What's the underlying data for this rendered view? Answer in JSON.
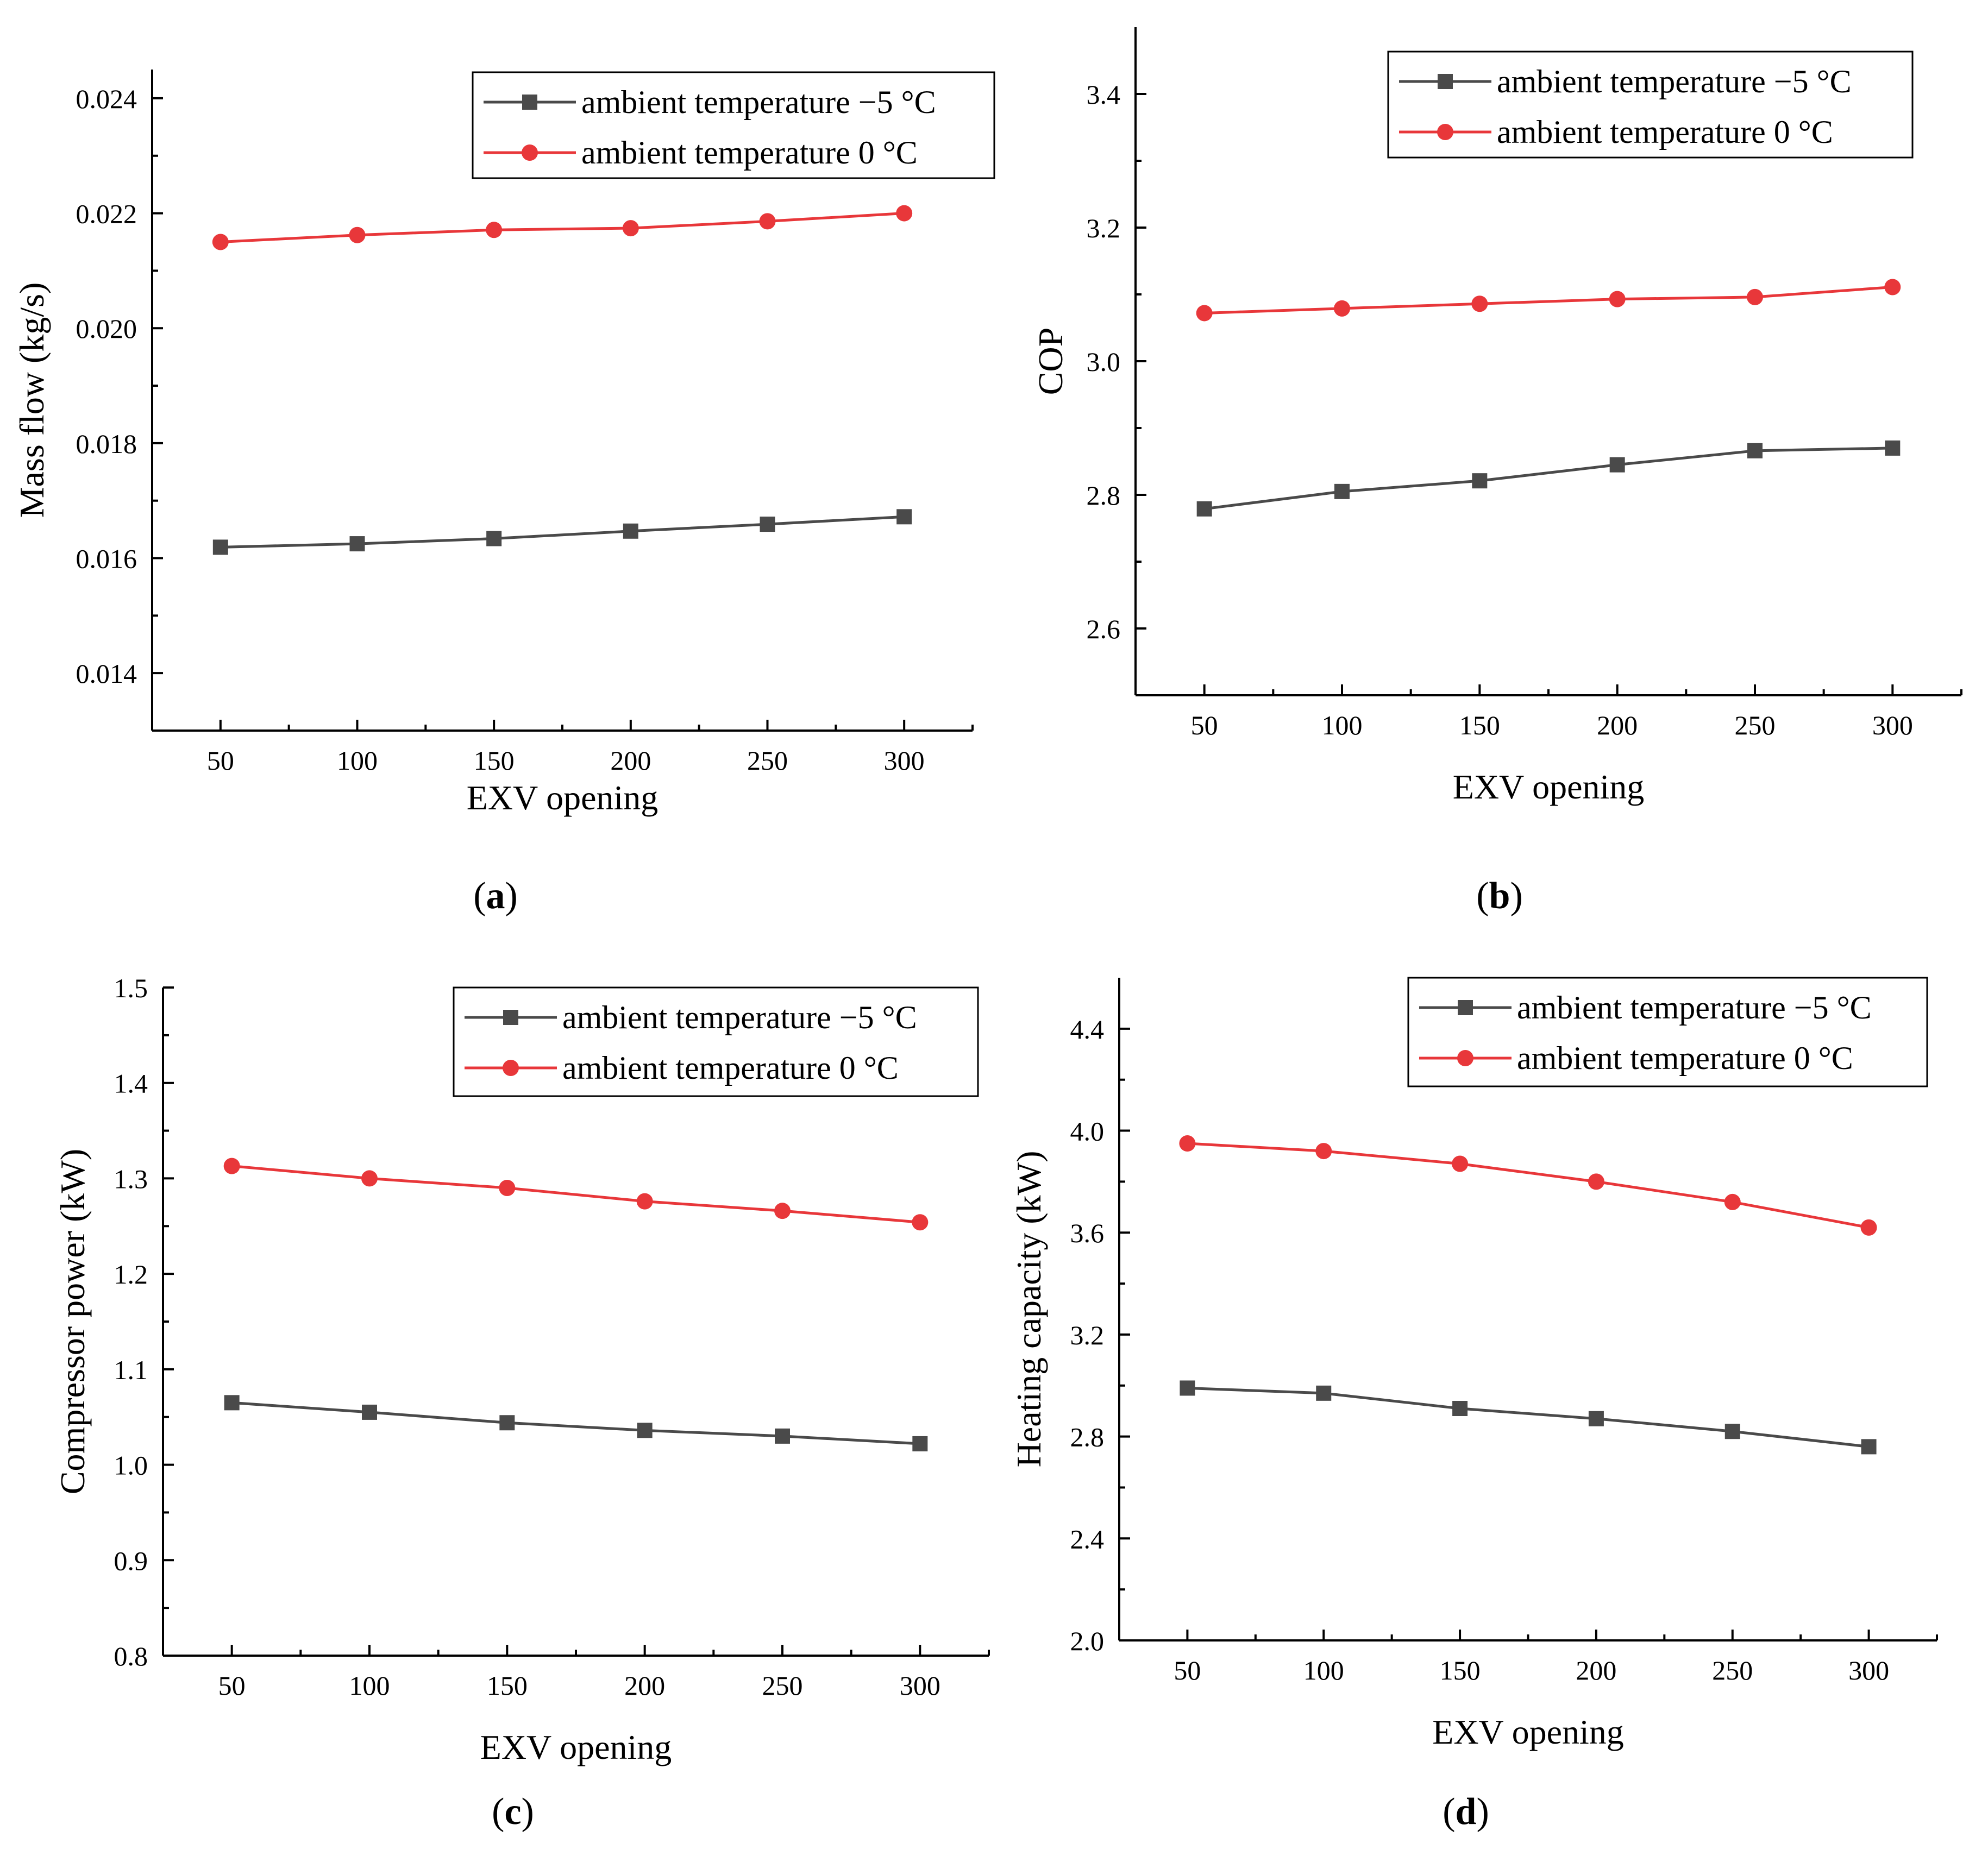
{
  "figure": {
    "captions": [
      {
        "open": "(",
        "letter": "a",
        "close": ")"
      },
      {
        "open": "(",
        "letter": "b",
        "close": ")"
      },
      {
        "open": "(",
        "letter": "c",
        "close": ")"
      },
      {
        "open": "(",
        "letter": "d",
        "close": ")"
      }
    ]
  },
  "colors": {
    "series_minus5": "#4a4a4a",
    "series_0": "#e8373a",
    "axis": "#000000"
  },
  "chart_data": [
    {
      "type": "line",
      "xlabel": "EXV opening",
      "ylabel": "Mass flow (kg/s)",
      "x": [
        50,
        100,
        150,
        200,
        250,
        300
      ],
      "xticks": [
        "50",
        "100",
        "150",
        "200",
        "250",
        "300"
      ],
      "xlim": [
        25,
        325
      ],
      "ylim": [
        0.013,
        0.0245
      ],
      "yticks": [
        0.014,
        0.016,
        0.018,
        0.02,
        0.022,
        0.024
      ],
      "yticklabels": [
        "0.014",
        "0.016",
        "0.018",
        "0.020",
        "0.022",
        "0.024"
      ],
      "legend_position": "top-right",
      "series": [
        {
          "name": "ambient temperature −5 °C",
          "marker": "square",
          "color": "#4a4a4a",
          "values": [
            0.01619,
            0.01625,
            0.01634,
            0.01647,
            0.01659,
            0.01672
          ]
        },
        {
          "name": "ambient temperature 0 °C",
          "marker": "circle",
          "color": "#e8373a",
          "values": [
            0.0215,
            0.02162,
            0.02171,
            0.02174,
            0.02186,
            0.022
          ]
        }
      ]
    },
    {
      "type": "line",
      "xlabel": "EXV opening",
      "ylabel": "COP",
      "x": [
        50,
        100,
        150,
        200,
        250,
        300
      ],
      "xticks": [
        "50",
        "100",
        "150",
        "200",
        "250",
        "300"
      ],
      "xlim": [
        25,
        325
      ],
      "ylim": [
        2.5,
        3.5
      ],
      "yticks": [
        2.6,
        2.8,
        3.0,
        3.2,
        3.4
      ],
      "yticklabels": [
        "2.6",
        "2.8",
        "3.0",
        "3.2",
        "3.4"
      ],
      "legend_position": "top-right",
      "series": [
        {
          "name": "ambient temperature −5 °C",
          "marker": "square",
          "color": "#4a4a4a",
          "values": [
            2.779,
            2.805,
            2.821,
            2.845,
            2.866,
            2.87
          ]
        },
        {
          "name": "ambient temperature 0 °C",
          "marker": "circle",
          "color": "#e8373a",
          "values": [
            3.072,
            3.079,
            3.086,
            3.093,
            3.096,
            3.111
          ]
        }
      ]
    },
    {
      "type": "line",
      "xlabel": "EXV opening",
      "ylabel": "Compressor power (kW)",
      "x": [
        50,
        100,
        150,
        200,
        250,
        300
      ],
      "xticks": [
        "50",
        "100",
        "150",
        "200",
        "250",
        "300"
      ],
      "xlim": [
        25,
        325
      ],
      "ylim": [
        0.8,
        1.5
      ],
      "yticks": [
        0.8,
        0.9,
        1.0,
        1.1,
        1.2,
        1.3,
        1.4,
        1.5
      ],
      "yticklabels": [
        "0.8",
        "0.9",
        "1.0",
        "1.1",
        "1.2",
        "1.3",
        "1.4",
        "1.5"
      ],
      "legend_position": "top-right",
      "series": [
        {
          "name": "ambient temperature −5 °C",
          "marker": "square",
          "color": "#4a4a4a",
          "values": [
            1.065,
            1.055,
            1.044,
            1.036,
            1.03,
            1.022
          ]
        },
        {
          "name": "ambient temperature 0 °C",
          "marker": "circle",
          "color": "#e8373a",
          "values": [
            1.313,
            1.3,
            1.29,
            1.276,
            1.266,
            1.254
          ]
        }
      ]
    },
    {
      "type": "line",
      "xlabel": "EXV opening",
      "ylabel": "Heating capacity (kW)",
      "x": [
        50,
        100,
        150,
        200,
        250,
        300
      ],
      "xticks": [
        "50",
        "100",
        "150",
        "200",
        "250",
        "300"
      ],
      "xlim": [
        25,
        325
      ],
      "ylim": [
        2.0,
        4.6
      ],
      "yticks": [
        2.0,
        2.4,
        2.8,
        3.2,
        3.6,
        4.0,
        4.4
      ],
      "yticklabels": [
        "2.0",
        "2.4",
        "2.8",
        "3.2",
        "3.6",
        "4.0",
        "4.4"
      ],
      "legend_position": "top-right",
      "series": [
        {
          "name": "ambient temperature −5 °C",
          "marker": "square",
          "color": "#4a4a4a",
          "values": [
            2.99,
            2.97,
            2.91,
            2.87,
            2.82,
            2.76
          ]
        },
        {
          "name": "ambient temperature 0 °C",
          "marker": "circle",
          "color": "#e8373a",
          "values": [
            3.95,
            3.92,
            3.87,
            3.8,
            3.72,
            3.62
          ]
        }
      ]
    }
  ]
}
